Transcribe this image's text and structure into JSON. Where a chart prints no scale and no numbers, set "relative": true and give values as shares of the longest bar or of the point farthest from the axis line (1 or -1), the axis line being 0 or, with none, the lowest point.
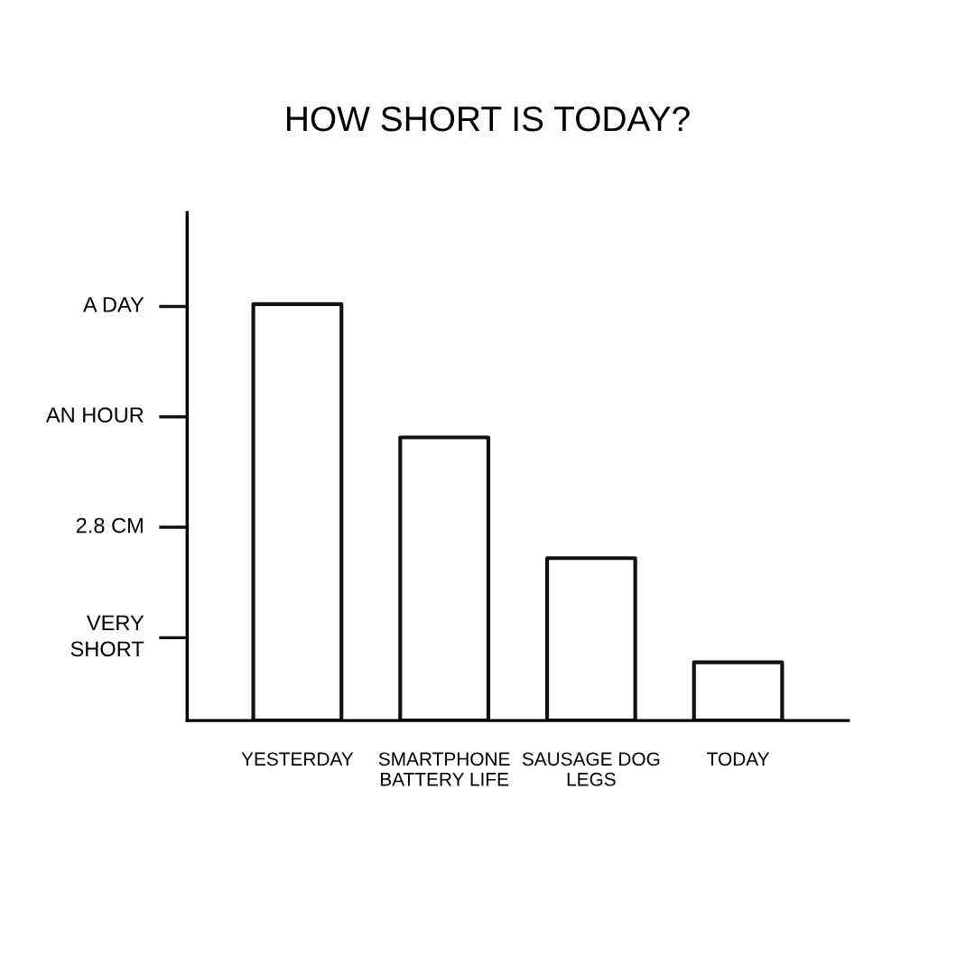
{
  "chart_data": {
    "type": "bar",
    "title": "HOW SHORT IS TODAY?",
    "categories": [
      "YESTERDAY",
      "SMARTPHONE\nBATTERY LIFE",
      "SAUSAGE DOG\nLEGS",
      "TODAY"
    ],
    "values": [
      1.0,
      0.68,
      0.39,
      0.14
    ],
    "color": "#ffffff",
    "relative": true,
    "annotations": [
      "VERY\nSHORT",
      "2.8 CM",
      "AN HOUR",
      "A DAY"
    ]
  }
}
